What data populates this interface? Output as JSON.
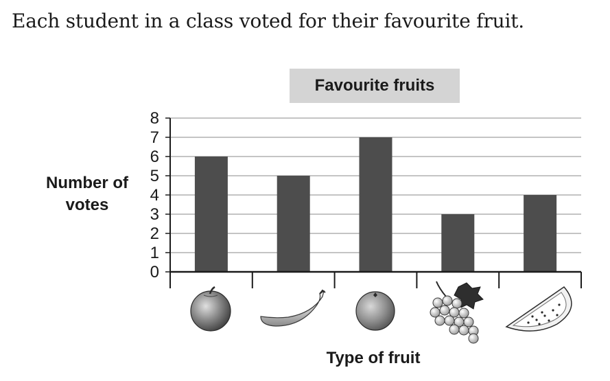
{
  "question": "Each student in a class voted for their favourite fruit.",
  "chart_data": {
    "type": "bar",
    "title": "Favourite fruits",
    "xlabel": "Type of fruit",
    "ylabel_lines": [
      "Number of",
      "votes"
    ],
    "categories": [
      "apple",
      "banana",
      "orange",
      "grapes",
      "watermelon"
    ],
    "category_icons": [
      "apple-icon",
      "banana-icon",
      "orange-icon",
      "grapes-icon",
      "watermelon-icon"
    ],
    "values": [
      6,
      5,
      7,
      3,
      4
    ],
    "ylim": [
      0,
      8
    ],
    "yticks": [
      "0",
      "1",
      "2",
      "3",
      "4",
      "5",
      "6",
      "7",
      "8"
    ],
    "grid": true,
    "bar_color": "#4d4d4d",
    "title_background": "#d4d4d4"
  }
}
